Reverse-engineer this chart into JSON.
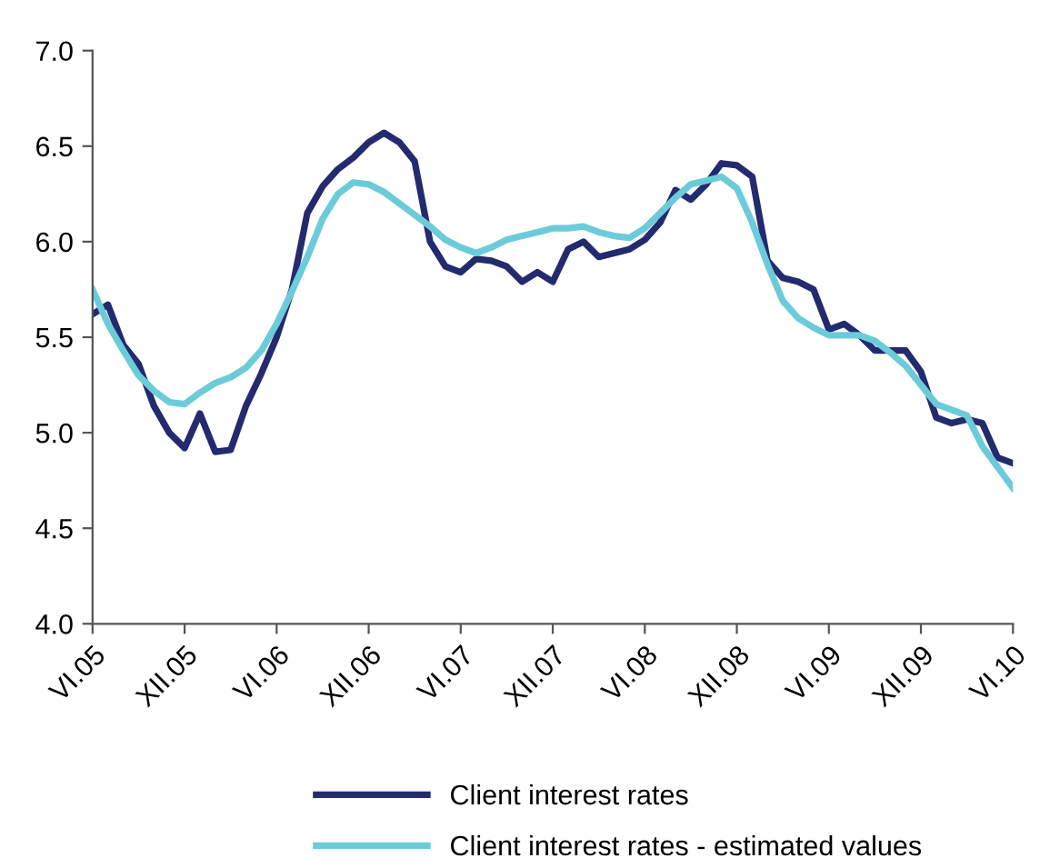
{
  "chart_data": {
    "type": "line",
    "x": [
      "2005-06",
      "2005-07",
      "2005-08",
      "2005-09",
      "2005-10",
      "2005-11",
      "2005-12",
      "2006-01",
      "2006-02",
      "2006-03",
      "2006-04",
      "2006-05",
      "2006-06",
      "2006-07",
      "2006-08",
      "2006-09",
      "2006-10",
      "2006-11",
      "2006-12",
      "2007-01",
      "2007-02",
      "2007-03",
      "2007-04",
      "2007-05",
      "2007-06",
      "2007-07",
      "2007-08",
      "2007-09",
      "2007-10",
      "2007-11",
      "2007-12",
      "2008-01",
      "2008-02",
      "2008-03",
      "2008-04",
      "2008-05",
      "2008-06",
      "2008-07",
      "2008-08",
      "2008-09",
      "2008-10",
      "2008-11",
      "2008-12",
      "2009-01",
      "2009-02",
      "2009-03",
      "2009-04",
      "2009-05",
      "2009-06",
      "2009-07",
      "2009-08",
      "2009-09",
      "2009-10",
      "2009-11",
      "2009-12",
      "2010-01",
      "2010-02",
      "2010-03",
      "2010-04",
      "2010-05",
      "2010-06"
    ],
    "series": [
      {
        "name": "Client interest rates",
        "color": "#232a6e",
        "values": [
          5.62,
          5.67,
          5.46,
          5.36,
          5.14,
          5.0,
          4.92,
          5.1,
          4.9,
          4.91,
          5.14,
          5.31,
          5.5,
          5.75,
          6.15,
          6.29,
          6.38,
          6.44,
          6.52,
          6.57,
          6.52,
          6.42,
          6.0,
          5.87,
          5.84,
          5.91,
          5.9,
          5.87,
          5.79,
          5.84,
          5.79,
          5.96,
          6.0,
          5.92,
          5.94,
          5.96,
          6.01,
          6.1,
          6.27,
          6.22,
          6.3,
          6.41,
          6.4,
          6.34,
          5.9,
          5.81,
          5.79,
          5.75,
          5.54,
          5.57,
          5.51,
          5.43,
          5.43,
          5.43,
          5.32,
          5.08,
          5.05,
          5.07,
          5.05,
          4.87,
          4.84
        ]
      },
      {
        "name": "Client interest rates - estimated values",
        "color": "#6bcbd9",
        "values": [
          5.75,
          5.57,
          5.43,
          5.3,
          5.22,
          5.16,
          5.15,
          5.21,
          5.26,
          5.29,
          5.34,
          5.43,
          5.57,
          5.74,
          5.92,
          6.12,
          6.25,
          6.31,
          6.3,
          6.26,
          6.2,
          6.14,
          6.08,
          6.01,
          5.97,
          5.94,
          5.97,
          6.01,
          6.03,
          6.05,
          6.07,
          6.07,
          6.08,
          6.05,
          6.03,
          6.02,
          6.07,
          6.15,
          6.23,
          6.3,
          6.32,
          6.34,
          6.28,
          6.1,
          5.88,
          5.69,
          5.6,
          5.55,
          5.51,
          5.51,
          5.51,
          5.48,
          5.42,
          5.35,
          5.25,
          5.15,
          5.12,
          5.09,
          4.93,
          4.82,
          4.71
        ]
      }
    ],
    "xlim": [
      "2005-06",
      "2010-06"
    ],
    "xticks": [
      {
        "value": "2005-06",
        "label": "VI.05"
      },
      {
        "value": "2005-12",
        "label": "XII.05"
      },
      {
        "value": "2006-06",
        "label": "VI.06"
      },
      {
        "value": "2006-12",
        "label": "XII.06"
      },
      {
        "value": "2007-06",
        "label": "VI.07"
      },
      {
        "value": "2007-12",
        "label": "XII.07"
      },
      {
        "value": "2008-06",
        "label": "VI.08"
      },
      {
        "value": "2008-12",
        "label": "XII.08"
      },
      {
        "value": "2009-06",
        "label": "VI.09"
      },
      {
        "value": "2009-12",
        "label": "XII.09"
      },
      {
        "value": "2010-06",
        "label": "VI.10"
      }
    ],
    "ylim": [
      4.0,
      7.0
    ],
    "yticks": [
      {
        "value": 4.0,
        "label": "4.0"
      },
      {
        "value": 4.5,
        "label": "4.5"
      },
      {
        "value": 5.0,
        "label": "5.0"
      },
      {
        "value": 5.5,
        "label": "5.5"
      },
      {
        "value": 6.0,
        "label": "6.0"
      },
      {
        "value": 6.5,
        "label": "6.5"
      },
      {
        "value": 7.0,
        "label": "7.0"
      }
    ],
    "grid": false,
    "legend": "bottom",
    "marker": "none",
    "line_style": "solid"
  }
}
